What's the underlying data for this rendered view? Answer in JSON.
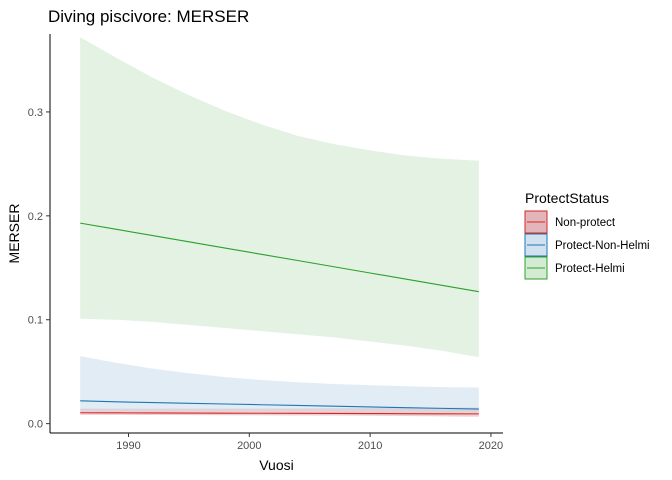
{
  "chart_data": {
    "type": "line",
    "title": "Diving piscivore: MERSER",
    "xlabel": "Vuosi",
    "ylabel": "MERSER",
    "xlim": [
      1983.5,
      2021
    ],
    "ylim": [
      -0.009,
      0.375
    ],
    "x_ticks": [
      1990,
      2000,
      2010,
      2020
    ],
    "y_ticks": [
      0.0,
      0.1,
      0.2,
      0.3
    ],
    "y_tick_labels": [
      "0.0",
      "0.1",
      "0.2",
      "0.3"
    ],
    "grid": false,
    "legend": {
      "title": "ProtectStatus",
      "position": "right"
    },
    "x": [
      1986,
      1989,
      1992,
      1995,
      1998,
      2001,
      2004,
      2007,
      2010,
      2013,
      2016,
      2019
    ],
    "series": [
      {
        "name": "Non-protect",
        "color": "#d62728",
        "fill": "#d9a3a8",
        "values": [
          0.0105,
          0.0104,
          0.0103,
          0.0102,
          0.0101,
          0.01,
          0.0099,
          0.0098,
          0.0097,
          0.0096,
          0.0095,
          0.0094
        ],
        "lower": [
          0.0085,
          0.0084,
          0.0083,
          0.0082,
          0.0081,
          0.008,
          0.0079,
          0.0078,
          0.0076,
          0.0073,
          0.007,
          0.0066
        ],
        "upper": [
          0.0145,
          0.0145,
          0.0145,
          0.0145,
          0.0145,
          0.0145,
          0.0146,
          0.0148,
          0.015,
          0.0152,
          0.0154,
          0.0156
        ]
      },
      {
        "name": "Protect-Non-Helmi",
        "color": "#1f77b4",
        "fill": "#c6d9ec",
        "values": [
          0.022,
          0.021,
          0.0203,
          0.0196,
          0.0189,
          0.0182,
          0.0175,
          0.0168,
          0.0161,
          0.0154,
          0.0147,
          0.014
        ],
        "lower": [
          0.0125,
          0.0127,
          0.0128,
          0.0129,
          0.0129,
          0.0129,
          0.0128,
          0.0126,
          0.0123,
          0.0119,
          0.0115,
          0.011
        ],
        "upper": [
          0.065,
          0.0585,
          0.053,
          0.0485,
          0.0448,
          0.042,
          0.0398,
          0.0382,
          0.037,
          0.036,
          0.0352,
          0.0348
        ]
      },
      {
        "name": "Protect-Helmi",
        "color": "#2ca02c",
        "fill": "#c8e6c8",
        "values": [
          0.193,
          0.187,
          0.181,
          0.175,
          0.169,
          0.163,
          0.157,
          0.151,
          0.145,
          0.139,
          0.133,
          0.127
        ],
        "lower": [
          0.101,
          0.1,
          0.098,
          0.095,
          0.092,
          0.089,
          0.086,
          0.083,
          0.079,
          0.075,
          0.07,
          0.064
        ],
        "upper": [
          0.372,
          0.352,
          0.333,
          0.316,
          0.301,
          0.288,
          0.277,
          0.269,
          0.263,
          0.258,
          0.255,
          0.253
        ]
      }
    ]
  }
}
